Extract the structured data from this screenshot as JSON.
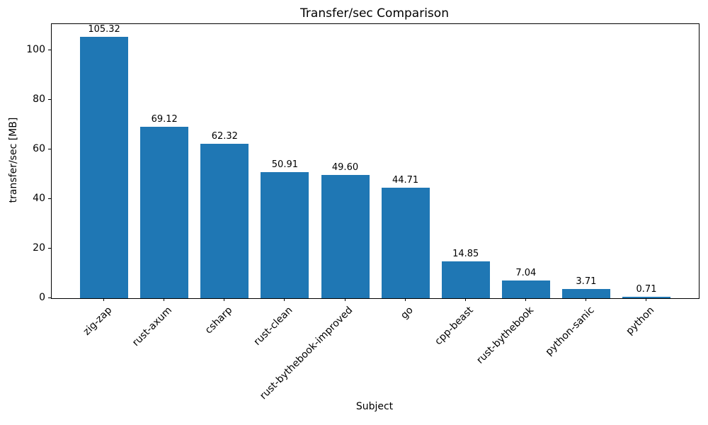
{
  "chart_data": {
    "type": "bar",
    "title": "Transfer/sec Comparison",
    "xlabel": "Subject",
    "ylabel": "transfer/sec [MB]",
    "categories": [
      "zig-zap",
      "rust-axum",
      "csharp",
      "rust-clean",
      "rust-bythebook-improved",
      "go",
      "cpp-beast",
      "rust-bythebook",
      "python-sanic",
      "python"
    ],
    "values": [
      105.32,
      69.12,
      62.32,
      50.91,
      49.6,
      44.71,
      14.85,
      7.04,
      3.71,
      0.71
    ],
    "value_labels": [
      "105.32",
      "69.12",
      "62.32",
      "50.91",
      "49.60",
      "44.71",
      "14.85",
      "7.04",
      "3.71",
      "0.71"
    ],
    "yticks": [
      0,
      20,
      40,
      60,
      80,
      100
    ],
    "ylim": [
      0,
      110.6
    ],
    "grid": "off",
    "legend": "none",
    "bar_color": "#1f77b4",
    "axis_color": "#000000"
  }
}
